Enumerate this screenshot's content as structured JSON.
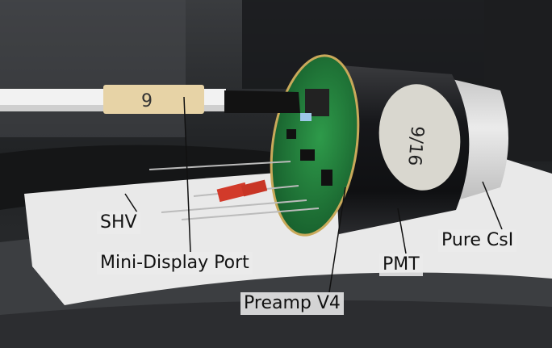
{
  "labels": {
    "shv": "SHV",
    "mini_display_port": "Mini-Display Port",
    "preamp": "Preamp V4",
    "pmt": "PMT",
    "pure_csi": "Pure CsI"
  },
  "tape_text": "9",
  "label_text": "9/16",
  "colors": {
    "pcb_green": "#1f7a3a",
    "pmt_wrap": "#1b1c1e",
    "crystal": "#d8d8d8",
    "cable_white": "#f2f2f2",
    "tape": "#e7d3a6",
    "tissue": "#e9e9e9"
  }
}
